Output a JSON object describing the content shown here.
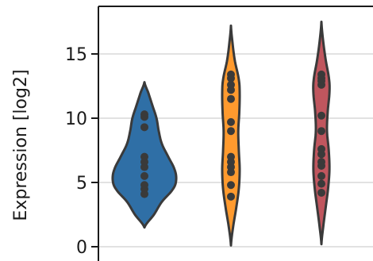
{
  "chart_data": {
    "type": "violin",
    "ylabel": "Expression [log2]",
    "ylim": [
      -0.4,
      18.5
    ],
    "yticks": [
      0,
      5,
      10,
      15
    ],
    "grid": "horizontal",
    "series": [
      {
        "color": "#2f6fa6",
        "kde_range": [
          1.5,
          12.8
        ],
        "profile": [
          [
            1.5,
            0.0
          ],
          [
            2.5,
            0.3
          ],
          [
            3.5,
            0.55
          ],
          [
            4.5,
            0.9
          ],
          [
            5.2,
            1.0
          ],
          [
            6.0,
            0.95
          ],
          [
            7.0,
            0.75
          ],
          [
            8.0,
            0.55
          ],
          [
            9.0,
            0.45
          ],
          [
            10.0,
            0.38
          ],
          [
            11.0,
            0.25
          ],
          [
            12.0,
            0.12
          ],
          [
            12.8,
            0.0
          ]
        ],
        "points": [
          4.1,
          4.5,
          4.8,
          5.5,
          6.2,
          6.6,
          7.0,
          9.3,
          10.1,
          10.3
        ]
      },
      {
        "color": "#ff9a2e",
        "kde_range": [
          0.1,
          17.2
        ],
        "profile": [
          [
            0.1,
            0.0
          ],
          [
            1.5,
            0.12
          ],
          [
            3.0,
            0.3
          ],
          [
            4.5,
            0.45
          ],
          [
            6.0,
            0.5
          ],
          [
            7.5,
            0.45
          ],
          [
            9.0,
            0.42
          ],
          [
            10.5,
            0.48
          ],
          [
            12.0,
            0.5
          ],
          [
            13.0,
            0.45
          ],
          [
            14.5,
            0.22
          ],
          [
            16.0,
            0.08
          ],
          [
            17.2,
            0.0
          ]
        ],
        "points": [
          3.9,
          4.8,
          5.8,
          6.2,
          6.6,
          7.0,
          9.0,
          9.7,
          11.5,
          12.2,
          12.6,
          13.1,
          13.4
        ]
      },
      {
        "color": "#c0565e",
        "kde_range": [
          0.2,
          17.5
        ],
        "profile": [
          [
            0.2,
            0.0
          ],
          [
            1.5,
            0.1
          ],
          [
            3.0,
            0.24
          ],
          [
            4.5,
            0.38
          ],
          [
            6.0,
            0.46
          ],
          [
            7.5,
            0.42
          ],
          [
            9.0,
            0.32
          ],
          [
            10.5,
            0.36
          ],
          [
            12.0,
            0.46
          ],
          [
            13.0,
            0.44
          ],
          [
            14.5,
            0.25
          ],
          [
            16.0,
            0.1
          ],
          [
            17.5,
            0.0
          ]
        ],
        "points": [
          4.2,
          4.9,
          5.5,
          6.3,
          6.6,
          7.2,
          7.6,
          9.0,
          10.2,
          12.6,
          12.9,
          13.1,
          13.4
        ]
      }
    ]
  }
}
